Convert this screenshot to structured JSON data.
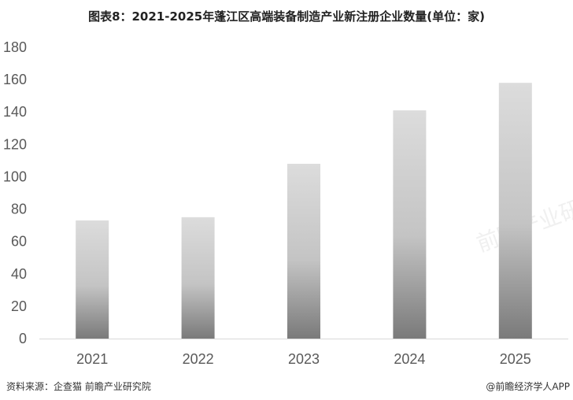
{
  "title": "图表8：2021-2025年蓬江区高端装备制造产业新注册企业数量(单位：家)",
  "source": "资料来源：企查猫 前瞻产业研究院",
  "credit": "@前瞻经济学人APP",
  "watermark": "前瞻产业研究院",
  "chart_data": {
    "type": "bar",
    "title": "图表8：2021-2025年蓬江区高端装备制造产业新注册企业数量(单位：家)",
    "categories": [
      "2021",
      "2022",
      "2023",
      "2024",
      "2025"
    ],
    "values": [
      73,
      75,
      108,
      141,
      158
    ],
    "ylim": [
      0,
      180
    ],
    "yticks": [
      0,
      20,
      40,
      60,
      80,
      100,
      120,
      140,
      160,
      180
    ],
    "grid": false,
    "bar_color": "gradient #d9d9d9 to #7f7f7f"
  }
}
